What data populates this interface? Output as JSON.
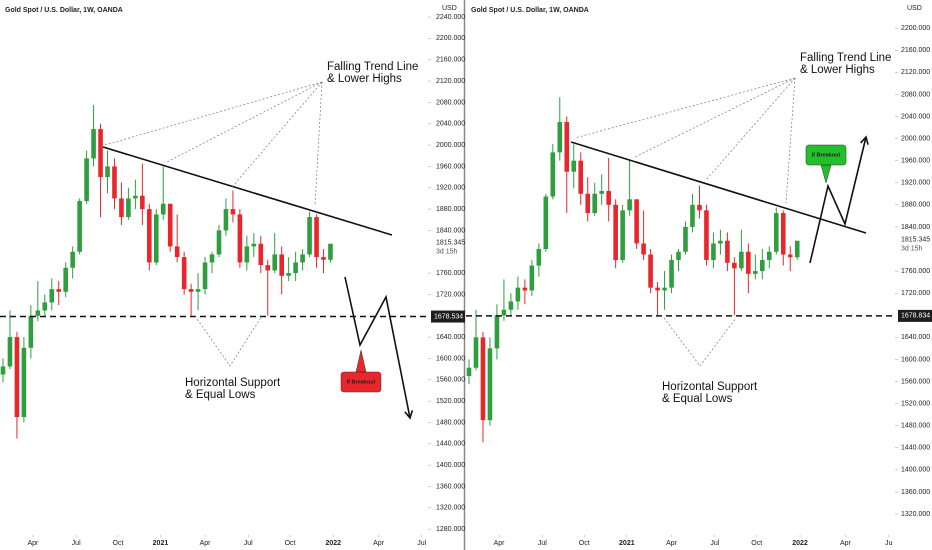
{
  "chart_data": [
    {
      "type": "candlestick",
      "title": "Gold Spot / U.S. Dollar, 1W, OANDA",
      "y_axis_label": "USD",
      "categories": [
        null,
        null,
        null,
        null,
        null,
        null,
        null,
        null,
        null,
        null,
        null,
        null,
        null,
        null,
        null,
        null,
        null,
        null,
        null,
        null,
        null,
        null,
        null,
        null,
        null,
        null,
        null,
        null,
        null,
        null,
        null,
        null,
        null,
        null,
        null,
        null,
        null,
        null,
        null,
        null,
        null,
        null,
        null,
        null,
        null,
        null,
        null,
        null
      ],
      "open": [
        1570,
        1585,
        1640,
        1490,
        1620,
        1680,
        1690,
        1705,
        1730,
        1725,
        1770,
        1800,
        1895,
        1975,
        2030,
        1940,
        1960,
        1900,
        1865,
        1900,
        1905,
        1880,
        1780,
        1870,
        1890,
        1810,
        1790,
        1730,
        1725,
        1730,
        1780,
        1795,
        1840,
        1880,
        1870,
        1780,
        1810,
        1815,
        1775,
        1765,
        1795,
        1755,
        1760,
        1780,
        1795,
        1865,
        1790,
        1785
      ],
      "high": [
        1600,
        1690,
        1650,
        1640,
        1700,
        1745,
        1720,
        1750,
        1745,
        1780,
        1810,
        1900,
        1990,
        2075,
        2040,
        1990,
        1975,
        1930,
        1920,
        1935,
        1965,
        1890,
        1880,
        1960,
        1890,
        1870,
        1800,
        1740,
        1760,
        1790,
        1800,
        1850,
        1900,
        1915,
        1880,
        1830,
        1835,
        1830,
        1785,
        1835,
        1810,
        1790,
        1800,
        1805,
        1875,
        1870,
        1805,
        1815
      ],
      "low": [
        1555,
        1580,
        1450,
        1480,
        1600,
        1670,
        1680,
        1690,
        1700,
        1715,
        1750,
        1795,
        1890,
        1960,
        1865,
        1910,
        1880,
        1850,
        1860,
        1880,
        1850,
        1765,
        1775,
        1860,
        1800,
        1780,
        1720,
        1680,
        1690,
        1720,
        1760,
        1790,
        1830,
        1855,
        1770,
        1765,
        1790,
        1760,
        1680,
        1760,
        1720,
        1745,
        1745,
        1765,
        1790,
        1770,
        1760,
        1780
      ],
      "close": [
        1585,
        1640,
        1490,
        1620,
        1680,
        1690,
        1705,
        1730,
        1725,
        1770,
        1800,
        1895,
        1975,
        2030,
        1940,
        1960,
        1900,
        1865,
        1900,
        1905,
        1880,
        1780,
        1870,
        1890,
        1810,
        1790,
        1730,
        1725,
        1730,
        1780,
        1795,
        1840,
        1880,
        1870,
        1780,
        1810,
        1815,
        1775,
        1765,
        1795,
        1755,
        1760,
        1780,
        1795,
        1865,
        1790,
        1785,
        1815
      ],
      "up_color": "#2e9e3f",
      "down_color": "#e8262b",
      "xlim": [
        -0.43,
        61.0
      ],
      "xticks": [
        {
          "value": 4.3,
          "label": "Apr"
        },
        {
          "value": 10.5,
          "label": "Jul"
        },
        {
          "value": 16.5,
          "label": "Oct"
        },
        {
          "value": 22.6,
          "label": "2021"
        },
        {
          "value": 29.0,
          "label": "Apr"
        },
        {
          "value": 35.2,
          "label": "Jul"
        },
        {
          "value": 41.2,
          "label": "Oct"
        },
        {
          "value": 47.4,
          "label": "2022"
        },
        {
          "value": 53.9,
          "label": "Apr"
        },
        {
          "value": 60.1,
          "label": "Jul"
        }
      ],
      "ylim": [
        1269,
        2272
      ],
      "yticks": [
        {
          "value": 1280,
          "label": "1280.000"
        },
        {
          "value": 1320,
          "label": "1320.000"
        },
        {
          "value": 1360,
          "label": "1360.000"
        },
        {
          "value": 1400,
          "label": "1400.000"
        },
        {
          "value": 1440,
          "label": "1440.000"
        },
        {
          "value": 1480,
          "label": "1480.000"
        },
        {
          "value": 1520,
          "label": "1520.000"
        },
        {
          "value": 1560,
          "label": "1560.000"
        },
        {
          "value": 1600,
          "label": "1600.000"
        },
        {
          "value": 1640,
          "label": "1640.000"
        },
        {
          "value": 1720,
          "label": "1720.000"
        },
        {
          "value": 1760,
          "label": "1760.000"
        },
        {
          "value": 1840,
          "label": "1840.000"
        },
        {
          "value": 1880,
          "label": "1880.000"
        },
        {
          "value": 1920,
          "label": "1920.000"
        },
        {
          "value": 1960,
          "label": "1960.000"
        },
        {
          "value": 2000,
          "label": "2000.000"
        },
        {
          "value": 2040,
          "label": "2040.000"
        },
        {
          "value": 2080,
          "label": "2080.000"
        },
        {
          "value": 2120,
          "label": "2120.000"
        },
        {
          "value": 2160,
          "label": "2160.000"
        },
        {
          "value": 2200,
          "label": "2200.000"
        },
        {
          "value": 2240,
          "label": "2240.000"
        }
      ],
      "support_level": 1678.534,
      "current_price": 1815.345,
      "countdown": "3d 15h",
      "annotations": [
        "Falling Trend Line",
        "& Lower Highs",
        "Horizontal Support",
        "& Equal Lows",
        "If Breakout"
      ],
      "breakout_color": "#e8262b"
    },
    {
      "type": "candlestick",
      "title": "Gold Spot / U.S. Dollar, 1W, OANDA",
      "y_axis_label": "USD",
      "categories": [
        null,
        null,
        null,
        null,
        null,
        null,
        null,
        null,
        null,
        null,
        null,
        null,
        null,
        null,
        null,
        null,
        null,
        null,
        null,
        null,
        null,
        null,
        null,
        null,
        null,
        null,
        null,
        null,
        null,
        null,
        null,
        null,
        null,
        null,
        null,
        null,
        null,
        null,
        null,
        null,
        null,
        null,
        null,
        null,
        null,
        null,
        null,
        null
      ],
      "open": [
        1570,
        1585,
        1640,
        1490,
        1620,
        1680,
        1690,
        1705,
        1730,
        1725,
        1770,
        1800,
        1895,
        1975,
        2030,
        1940,
        1960,
        1900,
        1865,
        1900,
        1905,
        1880,
        1780,
        1870,
        1890,
        1810,
        1790,
        1730,
        1725,
        1730,
        1780,
        1795,
        1840,
        1880,
        1870,
        1780,
        1810,
        1815,
        1775,
        1765,
        1795,
        1755,
        1760,
        1780,
        1795,
        1865,
        1790,
        1785
      ],
      "high": [
        1600,
        1690,
        1650,
        1640,
        1700,
        1745,
        1720,
        1750,
        1745,
        1780,
        1810,
        1900,
        1990,
        2075,
        2040,
        1990,
        1975,
        1930,
        1920,
        1935,
        1965,
        1890,
        1880,
        1960,
        1890,
        1870,
        1800,
        1740,
        1760,
        1790,
        1800,
        1850,
        1900,
        1915,
        1880,
        1830,
        1835,
        1830,
        1785,
        1835,
        1810,
        1790,
        1800,
        1805,
        1875,
        1870,
        1805,
        1815
      ],
      "low": [
        1555,
        1580,
        1450,
        1480,
        1600,
        1670,
        1680,
        1690,
        1700,
        1715,
        1750,
        1795,
        1890,
        1960,
        1865,
        1910,
        1880,
        1850,
        1860,
        1880,
        1850,
        1765,
        1775,
        1860,
        1800,
        1780,
        1720,
        1680,
        1690,
        1720,
        1760,
        1790,
        1830,
        1855,
        1770,
        1765,
        1790,
        1760,
        1680,
        1760,
        1720,
        1745,
        1745,
        1765,
        1790,
        1770,
        1760,
        1780
      ],
      "close": [
        1585,
        1640,
        1490,
        1620,
        1680,
        1690,
        1705,
        1730,
        1725,
        1770,
        1800,
        1895,
        1975,
        2030,
        1940,
        1960,
        1900,
        1865,
        1900,
        1905,
        1880,
        1780,
        1870,
        1890,
        1810,
        1790,
        1730,
        1725,
        1730,
        1780,
        1795,
        1840,
        1880,
        1870,
        1780,
        1810,
        1815,
        1775,
        1765,
        1795,
        1755,
        1760,
        1780,
        1795,
        1865,
        1790,
        1785,
        1815
      ],
      "up_color": "#2e9e3f",
      "down_color": "#e8262b",
      "xlim": [
        -0.43,
        61.0
      ],
      "xticks": [
        {
          "value": 4.3,
          "label": "Apr"
        },
        {
          "value": 10.5,
          "label": "Jul"
        },
        {
          "value": 16.5,
          "label": "Oct"
        },
        {
          "value": 22.6,
          "label": "2021"
        },
        {
          "value": 29.0,
          "label": "Apr"
        },
        {
          "value": 35.2,
          "label": "Jul"
        },
        {
          "value": 41.2,
          "label": "Oct"
        },
        {
          "value": 47.4,
          "label": "2022"
        },
        {
          "value": 53.9,
          "label": "Apr"
        },
        {
          "value": 60.1,
          "label": "Ju"
        }
      ],
      "ylim": [
        1282,
        2251
      ],
      "yticks": [
        {
          "value": 1320,
          "label": "1320.000"
        },
        {
          "value": 1360,
          "label": "1360.000"
        },
        {
          "value": 1400,
          "label": "1400.000"
        },
        {
          "value": 1440,
          "label": "1440.000"
        },
        {
          "value": 1480,
          "label": "1480.000"
        },
        {
          "value": 1520,
          "label": "1520.000"
        },
        {
          "value": 1560,
          "label": "1560.000"
        },
        {
          "value": 1600,
          "label": "1600.000"
        },
        {
          "value": 1640,
          "label": "1640.000"
        },
        {
          "value": 1720,
          "label": "1720.000"
        },
        {
          "value": 1760,
          "label": "1760.000"
        },
        {
          "value": 1840,
          "label": "1840.000"
        },
        {
          "value": 1880,
          "label": "1880.000"
        },
        {
          "value": 1920,
          "label": "1920.000"
        },
        {
          "value": 1960,
          "label": "1960.000"
        },
        {
          "value": 2000,
          "label": "2000.000"
        },
        {
          "value": 2040,
          "label": "2040.000"
        },
        {
          "value": 2080,
          "label": "2080.000"
        },
        {
          "value": 2120,
          "label": "2120.000"
        },
        {
          "value": 2160,
          "label": "2160.000"
        },
        {
          "value": 2200,
          "label": "2200.000"
        }
      ],
      "support_level": 1678.834,
      "current_price": 1815.345,
      "countdown": "3d 15h",
      "annotations": [
        "Falling Trend Line",
        "& Lower Highs",
        "Horizontal Support",
        "& Equal Lows",
        "If Breakout"
      ],
      "breakout_color": "#22c02a"
    }
  ]
}
